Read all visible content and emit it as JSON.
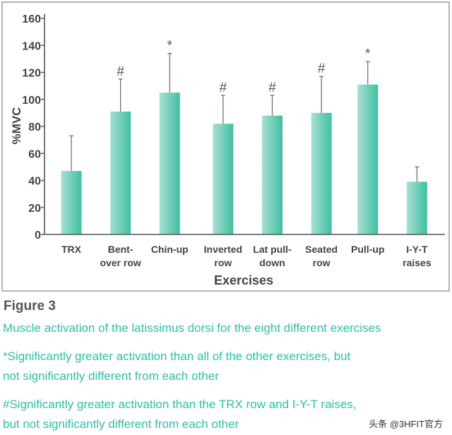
{
  "chart_data": {
    "type": "bar",
    "ylabel": "%MVC",
    "xlabel": "Exercises",
    "ylim": [
      0,
      160
    ],
    "yticks": [
      0,
      20,
      40,
      60,
      80,
      100,
      120,
      140,
      160
    ],
    "categories": [
      [
        "TRX"
      ],
      [
        "Bent-",
        "over row"
      ],
      [
        "Chin-up"
      ],
      [
        "Inverted",
        "row"
      ],
      [
        "Lat pull-",
        "down"
      ],
      [
        "Seated",
        "row"
      ],
      [
        "Pull-up"
      ],
      [
        "I-Y-T",
        "raises"
      ]
    ],
    "values": [
      47,
      91,
      105,
      82,
      88,
      90,
      111,
      39
    ],
    "error_upper": [
      73,
      115,
      134,
      103,
      103,
      117,
      128,
      50
    ],
    "markers": [
      "",
      "#",
      "*",
      "#",
      "#",
      "#",
      "*",
      ""
    ],
    "colors": {
      "bar": "#3fbfa2",
      "bar_light": "#a8e0d2",
      "axis": "#555555",
      "text": "#444444",
      "frame": "#999999"
    }
  },
  "figure": {
    "label": "Figure 3",
    "caption": "Muscle activation of the latissimus dorsi for the eight different exercises",
    "note_star": "*Significantly greater activation than all of the other exercises, but not significantly different from each other",
    "note_star_lines": [
      "*Significantly greater activation than all of the other exercises, but",
      "not significantly different from each other"
    ],
    "note_hash": "#Significantly greater activation than the TRX row and I-Y-T raises, but not significantly different from each other",
    "note_hash_lines": [
      "#Significantly greater activation than the TRX row and I-Y-T raises,",
      "but not significantly different from each other"
    ]
  },
  "watermark": "头条 @3HFIT官方"
}
